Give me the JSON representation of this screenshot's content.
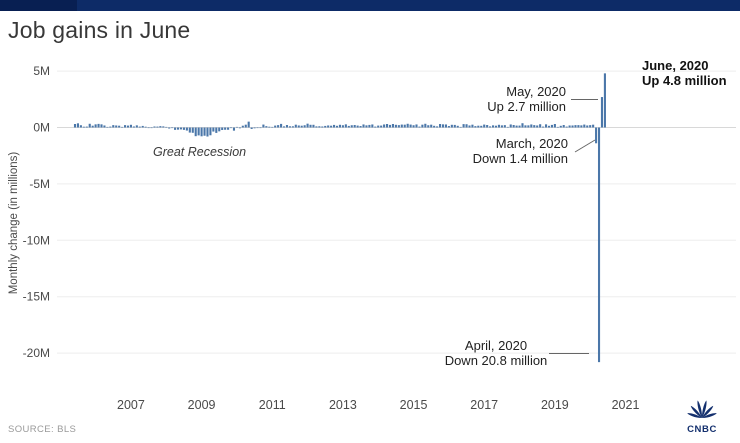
{
  "page": {
    "title": "Job gains in June",
    "source": "SOURCE: BLS",
    "brand": "CNBC"
  },
  "chart_data": {
    "type": "bar",
    "title": "Job gains in June",
    "ylabel": "Monthly change (in millions)",
    "unit": "millions of jobs",
    "start_month": "2005-06",
    "end_month": "2020-06",
    "bar_color": "#4b77a9",
    "grid": true,
    "legend": "none",
    "ylim": [
      -22,
      5.5
    ],
    "yticks": [
      {
        "label": "5M",
        "value": 5
      },
      {
        "label": "0M",
        "value": 0
      },
      {
        "label": "-5M",
        "value": -5
      },
      {
        "label": "-10M",
        "value": -10
      },
      {
        "label": "-15M",
        "value": -15
      },
      {
        "label": "-20M",
        "value": -20
      }
    ],
    "xticks": [
      {
        "label": "2007",
        "year": 2007
      },
      {
        "label": "2009",
        "year": 2009
      },
      {
        "label": "2011",
        "year": 2011
      },
      {
        "label": "2013",
        "year": 2013
      },
      {
        "label": "2015",
        "year": 2015
      },
      {
        "label": "2017",
        "year": 2017
      },
      {
        "label": "2019",
        "year": 2019
      },
      {
        "label": "2021",
        "year": 2021
      }
    ],
    "values": [
      0.31,
      0.37,
      0.2,
      0.07,
      0.08,
      0.33,
      0.16,
      0.28,
      0.32,
      0.28,
      0.18,
      0.02,
      0.08,
      0.21,
      0.18,
      0.16,
      0.02,
      0.21,
      0.17,
      0.24,
      0.09,
      0.19,
      0.08,
      0.14,
      0.07,
      -0.03,
      -0.02,
      0.09,
      0.08,
      0.12,
      0.1,
      0.01,
      -0.09,
      -0.05,
      -0.21,
      -0.19,
      -0.17,
      -0.21,
      -0.27,
      -0.45,
      -0.47,
      -0.77,
      -0.7,
      -0.78,
      -0.73,
      -0.8,
      -0.69,
      -0.36,
      -0.48,
      -0.34,
      -0.22,
      -0.2,
      -0.2,
      -0.01,
      -0.28,
      0.02,
      -0.07,
      0.16,
      0.25,
      0.52,
      -0.13,
      -0.07,
      -0.04,
      -0.05,
      0.26,
      0.12,
      0.07,
      0.04,
      0.17,
      0.21,
      0.32,
      0.1,
      0.22,
      0.11,
      0.11,
      0.25,
      0.18,
      0.16,
      0.2,
      0.34,
      0.24,
      0.24,
      0.1,
      0.11,
      0.09,
      0.14,
      0.18,
      0.16,
      0.23,
      0.15,
      0.24,
      0.2,
      0.28,
      0.14,
      0.2,
      0.22,
      0.17,
      0.13,
      0.27,
      0.19,
      0.23,
      0.27,
      0.08,
      0.17,
      0.17,
      0.27,
      0.31,
      0.23,
      0.31,
      0.24,
      0.21,
      0.26,
      0.25,
      0.33,
      0.26,
      0.2,
      0.27,
      0.08,
      0.25,
      0.33,
      0.2,
      0.25,
      0.15,
      0.1,
      0.31,
      0.28,
      0.27,
      0.13,
      0.24,
      0.23,
      0.15,
      0.04,
      0.3,
      0.29,
      0.18,
      0.25,
      0.12,
      0.16,
      0.15,
      0.26,
      0.22,
      0.1,
      0.19,
      0.16,
      0.24,
      0.19,
      0.21,
      0.01,
      0.27,
      0.22,
      0.17,
      0.17,
      0.38,
      0.19,
      0.19,
      0.27,
      0.21,
      0.18,
      0.29,
      0.08,
      0.28,
      0.15,
      0.23,
      0.31,
      0.02,
      0.15,
      0.22,
      0.08,
      0.18,
      0.18,
      0.21,
      0.21,
      0.19,
      0.26,
      0.18,
      0.21,
      0.25,
      -1.4,
      -20.8,
      2.7,
      4.8
    ],
    "annotations": [
      {
        "id": "june",
        "line1": "June, 2020",
        "line2": "Up 4.8 million"
      },
      {
        "id": "may",
        "line1": "May, 2020",
        "line2": "Up 2.7 million"
      },
      {
        "id": "march",
        "line1": "March, 2020",
        "line2": "Down 1.4 million"
      },
      {
        "id": "april",
        "line1": "April, 2020",
        "line2": "Down 20.8 million"
      },
      {
        "id": "great-recession",
        "text": "Great Recession"
      }
    ]
  }
}
